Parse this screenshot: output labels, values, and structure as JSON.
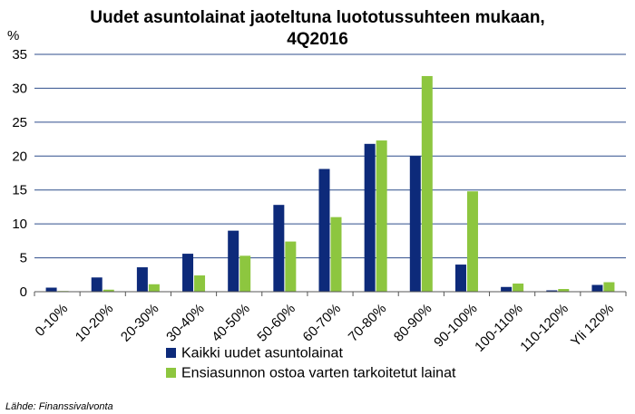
{
  "chart_data": {
    "type": "bar",
    "title_line1": "Uudet asuntolainat jaoteltuna luototussuhteen mukaan,",
    "title_line2": "4Q2016",
    "y_unit": "%",
    "ylim": [
      0,
      35
    ],
    "yticks": [
      0,
      5,
      10,
      15,
      20,
      25,
      30,
      35
    ],
    "grid": true,
    "legend_position": "bottom",
    "categories": [
      "0-10%",
      "10-20%",
      "20-30%",
      "30-40%",
      "40-50%",
      "50-60%",
      "60-70%",
      "70-80%",
      "80-90%",
      "90-100%",
      "100-110%",
      "110-120%",
      "Yli 120%"
    ],
    "series": [
      {
        "name": "Kaikki uudet asuntolainat",
        "color": "#0d2a7a",
        "values": [
          0.6,
          2.1,
          3.6,
          5.6,
          9.0,
          12.8,
          18.1,
          21.8,
          20.0,
          4.0,
          0.7,
          0.2,
          1.0
        ]
      },
      {
        "name": "Ensiasunnon ostoa varten tarkoitetut lainat",
        "color": "#8dc63f",
        "values": [
          0.1,
          0.3,
          1.1,
          2.4,
          5.3,
          7.4,
          11.0,
          22.3,
          31.8,
          14.8,
          1.2,
          0.4,
          1.4
        ]
      }
    ],
    "source": "Lähde: Finanssivalvonta"
  }
}
